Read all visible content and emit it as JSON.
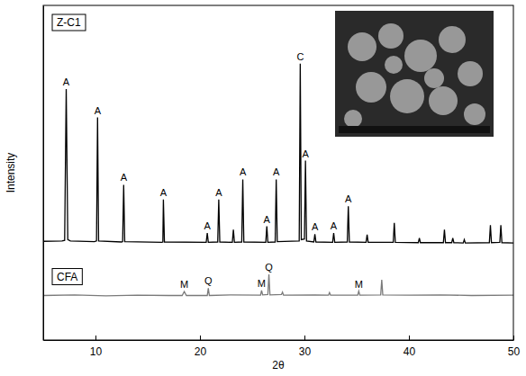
{
  "chart_data": {
    "type": "line",
    "x_label": "2θ",
    "y_label": "Intensity",
    "xlim": [
      5,
      50
    ],
    "xticks": [
      10,
      20,
      30,
      40,
      50
    ],
    "ylim": [
      0,
      100
    ],
    "yticks": [],
    "tick_labels": "x",
    "grid": false,
    "series": [
      {
        "name": "Z-C1",
        "color": "#000000",
        "x": [
          5,
          6.8,
          7.05,
          7.2,
          7.35,
          7.6,
          9.9,
          10.1,
          10.2,
          10.3,
          12.5,
          12.6,
          12.7,
          12.8,
          16.35,
          16.45,
          16.5,
          16.6,
          20.6,
          20.7,
          20.8,
          21.7,
          21.8,
          21.9,
          23.1,
          23.2,
          23.3,
          24.0,
          24.1,
          24.2,
          26.3,
          26.4,
          26.5,
          27.2,
          27.3,
          27.4,
          29.5,
          29.6,
          29.7,
          30.0,
          30.1,
          30.2,
          30.9,
          31.0,
          31.1,
          32.7,
          32.8,
          32.9,
          34.1,
          34.2,
          34.3,
          35.9,
          36.0,
          36.1,
          38.5,
          38.6,
          38.7,
          40.9,
          41.0,
          41.1,
          43.3,
          43.4,
          43.5,
          44.1,
          44.2,
          44.3,
          45.2,
          45.3,
          45.4,
          47.7,
          47.8,
          47.9,
          48.7,
          48.8,
          48.9,
          50
        ],
        "values": [
          29.5,
          29.6,
          29.8,
          75,
          30,
          29.6,
          29.4,
          29.6,
          66.5,
          29.6,
          29.3,
          29.4,
          46.4,
          29.4,
          29.2,
          29.3,
          42,
          29.3,
          29.2,
          32,
          29.2,
          29.3,
          42,
          29.3,
          29.2,
          33,
          29.2,
          29.3,
          48,
          29.3,
          29.2,
          34,
          29.2,
          29.3,
          48,
          29.4,
          29.6,
          82.6,
          30,
          30.2,
          53.6,
          29.6,
          29.3,
          31.6,
          29.3,
          29.2,
          32,
          29.2,
          29.3,
          40,
          29.3,
          29.2,
          31.5,
          29.2,
          29.2,
          35,
          29.2,
          29.1,
          30.5,
          29.1,
          29.1,
          33,
          29.1,
          29.1,
          30.5,
          29.1,
          29,
          30,
          29,
          29.1,
          34.3,
          29.1,
          29.2,
          34.3,
          29.1,
          29
        ]
      },
      {
        "name": "CFA",
        "color": "#7a7a7a",
        "x": [
          5,
          8,
          11,
          14,
          17,
          18.3,
          18.5,
          18.7,
          20.7,
          20.8,
          20.9,
          23,
          25.8,
          25.9,
          26.0,
          26.5,
          26.6,
          26.7,
          27.8,
          27.9,
          28.0,
          31,
          32.3,
          32.4,
          32.5,
          35.1,
          35.2,
          35.3,
          37.3,
          37.4,
          37.5,
          40,
          43,
          46,
          50
        ],
        "values": [
          13.3,
          13.5,
          13.2,
          13.4,
          13.3,
          13.3,
          14.5,
          13.3,
          13.3,
          15.5,
          13.3,
          13.5,
          13.4,
          14.8,
          13.5,
          13.6,
          19.6,
          13.5,
          13.6,
          14.3,
          13.4,
          13.5,
          13.4,
          14.2,
          13.4,
          13.4,
          14.6,
          13.4,
          13.5,
          18.0,
          13.5,
          13.4,
          13.5,
          13.3,
          13.4
        ]
      }
    ],
    "annotations": [
      {
        "text": "A",
        "x": 7.2,
        "y": 75
      },
      {
        "text": "A",
        "x": 10.2,
        "y": 66.5
      },
      {
        "text": "A",
        "x": 12.7,
        "y": 46.4
      },
      {
        "text": "A",
        "x": 16.5,
        "y": 42
      },
      {
        "text": "A",
        "x": 20.7,
        "y": 32
      },
      {
        "text": "A",
        "x": 21.8,
        "y": 42
      },
      {
        "text": "A",
        "x": 24.1,
        "y": 48
      },
      {
        "text": "A",
        "x": 26.4,
        "y": 34
      },
      {
        "text": "A",
        "x": 27.3,
        "y": 48
      },
      {
        "text": "C",
        "x": 29.6,
        "y": 82.6
      },
      {
        "text": "A",
        "x": 30.1,
        "y": 53.6
      },
      {
        "text": "A",
        "x": 31.0,
        "y": 31.6
      },
      {
        "text": "A",
        "x": 32.8,
        "y": 32
      },
      {
        "text": "A",
        "x": 34.2,
        "y": 40
      },
      {
        "text": "M",
        "x": 18.5,
        "y": 14.5
      },
      {
        "text": "Q",
        "x": 20.8,
        "y": 15.5
      },
      {
        "text": "M",
        "x": 25.9,
        "y": 14.8
      },
      {
        "text": "Q",
        "x": 26.6,
        "y": 19.6
      },
      {
        "text": "M",
        "x": 35.2,
        "y": 14.6
      }
    ]
  }
}
